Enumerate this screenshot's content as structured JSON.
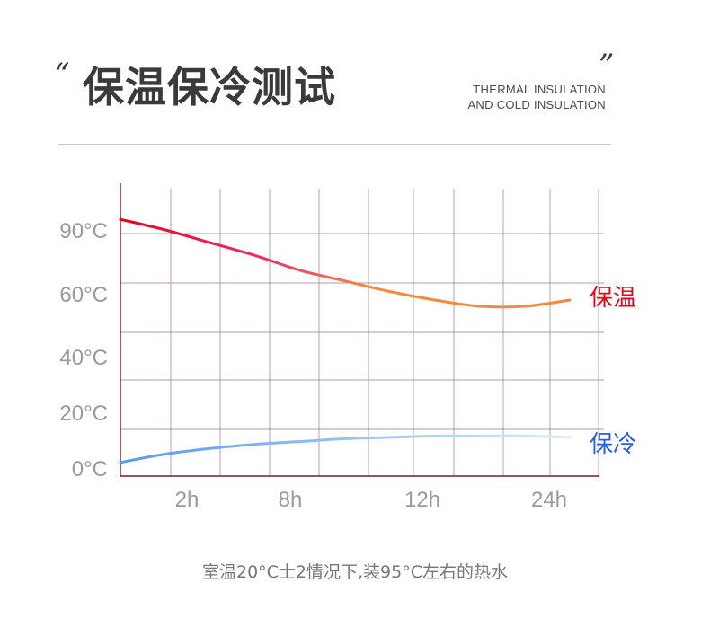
{
  "header": {
    "open_quote": "“",
    "close_quote": "”",
    "title": "保温保冷测试",
    "subtitle_line1": "THERMAL INSULATION",
    "subtitle_line2": "AND COLD INSULATION"
  },
  "chart_data": {
    "type": "line",
    "y_tick_labels": [
      "90°C",
      "60°C",
      "40°C",
      "20°C",
      "0°C"
    ],
    "x_tick_labels": [
      "2h",
      "8h",
      "12h",
      "24h"
    ],
    "grid": true,
    "series": [
      {
        "name": "保温",
        "color_start": "#e8001e",
        "color_mid": "#f0306a",
        "color_end": "#f5893e",
        "label_color": "#e8001e",
        "values": [
          95,
          90,
          84,
          78,
          71,
          66,
          61,
          58,
          56,
          56,
          58
        ]
      },
      {
        "name": "保冷",
        "color_start": "#5a98ee",
        "color_end": "#d8ecfa",
        "label_color": "#2a5be0",
        "values": [
          2,
          5,
          7,
          8.5,
          9.5,
          10.5,
          11,
          11.5,
          11.5,
          11.5,
          11
        ]
      }
    ]
  },
  "caption": "室温20°C士2情况下,装95°C左右的热水"
}
